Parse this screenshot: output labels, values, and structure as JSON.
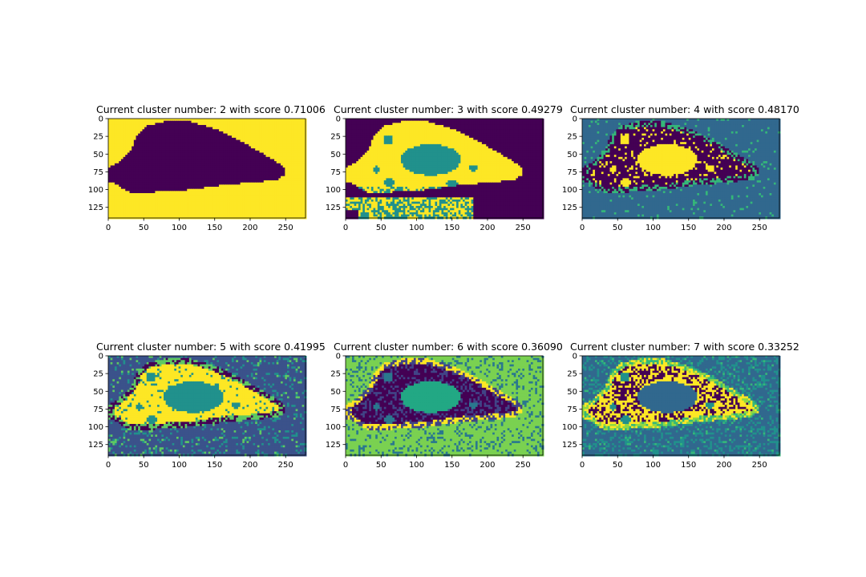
{
  "figure": {
    "colormap": "viridis",
    "colors": [
      "#440154",
      "#3b528b",
      "#21918c",
      "#5ec962",
      "#fde725"
    ]
  },
  "chart_data": [
    {
      "type": "heatmap",
      "title": "Current cluster number: 2 with score 0.71006",
      "clusters": 2,
      "score": 0.71006,
      "xlim": [
        0,
        278
      ],
      "ylim": [
        140,
        0
      ],
      "xticks": [
        0,
        50,
        100,
        150,
        200,
        250
      ],
      "yticks": [
        0,
        25,
        50,
        75,
        100,
        125
      ],
      "palette": [
        "#440154",
        "#fde725"
      ]
    },
    {
      "type": "heatmap",
      "title": "Current cluster number: 3 with score 0.49279",
      "clusters": 3,
      "score": 0.49279,
      "xlim": [
        0,
        278
      ],
      "ylim": [
        140,
        0
      ],
      "xticks": [
        0,
        50,
        100,
        150,
        200,
        250
      ],
      "yticks": [
        0,
        25,
        50,
        75,
        100,
        125
      ],
      "palette": [
        "#440154",
        "#21918c",
        "#fde725"
      ]
    },
    {
      "type": "heatmap",
      "title": "Current cluster number: 4 with score 0.48170",
      "clusters": 4,
      "score": 0.4817,
      "xlim": [
        0,
        278
      ],
      "ylim": [
        140,
        0
      ],
      "xticks": [
        0,
        50,
        100,
        150,
        200,
        250
      ],
      "yticks": [
        0,
        25,
        50,
        75,
        100,
        125
      ],
      "palette": [
        "#440154",
        "#31688e",
        "#35b779",
        "#fde725"
      ]
    },
    {
      "type": "heatmap",
      "title": "Current cluster number: 5 with score 0.41995",
      "clusters": 5,
      "score": 0.41995,
      "xlim": [
        0,
        278
      ],
      "ylim": [
        140,
        0
      ],
      "xticks": [
        0,
        50,
        100,
        150,
        200,
        250
      ],
      "yticks": [
        0,
        25,
        50,
        75,
        100,
        125
      ],
      "palette": [
        "#440154",
        "#3b528b",
        "#21918c",
        "#5ec962",
        "#fde725"
      ]
    },
    {
      "type": "heatmap",
      "title": "Current cluster number: 6 with score 0.36090",
      "clusters": 6,
      "score": 0.3609,
      "xlim": [
        0,
        278
      ],
      "ylim": [
        140,
        0
      ],
      "xticks": [
        0,
        50,
        100,
        150,
        200,
        250
      ],
      "yticks": [
        0,
        25,
        50,
        75,
        100,
        125
      ],
      "palette": [
        "#440154",
        "#414487",
        "#2a788e",
        "#22a884",
        "#7ad151",
        "#fde725"
      ]
    },
    {
      "type": "heatmap",
      "title": "Current cluster number: 7 with score 0.33252",
      "clusters": 7,
      "score": 0.33252,
      "xlim": [
        0,
        278
      ],
      "ylim": [
        140,
        0
      ],
      "xticks": [
        0,
        50,
        100,
        150,
        200,
        250
      ],
      "yticks": [
        0,
        25,
        50,
        75,
        100,
        125
      ],
      "palette": [
        "#440154",
        "#443983",
        "#31688e",
        "#21918c",
        "#35b779",
        "#90d743",
        "#fde725"
      ]
    }
  ]
}
